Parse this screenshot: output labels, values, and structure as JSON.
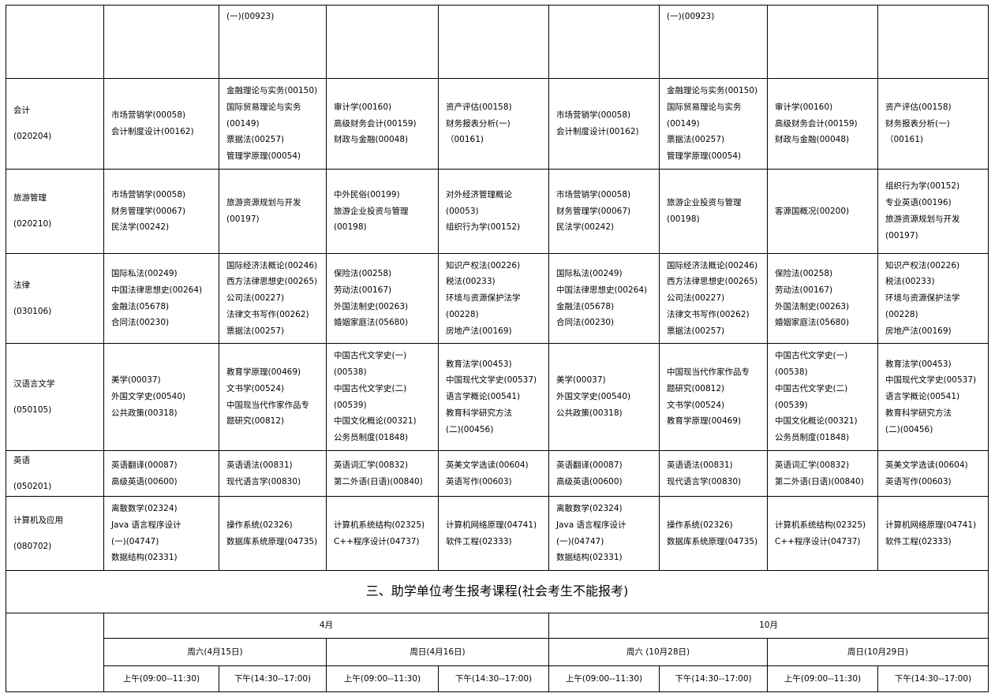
{
  "continuation_row": {
    "cells": [
      [],
      [
        "(一)(00923)"
      ],
      [],
      [],
      [],
      [
        "(一)(00923)"
      ],
      [],
      [],
      []
    ]
  },
  "majors": [
    {
      "name": "会计",
      "code": "(020204)",
      "cells": [
        [
          "市场营销学(00058)",
          "会计制度设计(00162)"
        ],
        [
          "金融理论与实务(00150)",
          "国际贸易理论与实务",
          "(00149)",
          "票据法(00257)",
          "管理学原理(00054)"
        ],
        [
          "审计学(00160)",
          "高级财务会计(00159)",
          "财政与金融(00048)"
        ],
        [
          "资产评估(00158)",
          "财务报表分析(一)",
          "（00161)"
        ],
        [
          "市场营销学(00058)",
          "会计制度设计(00162)"
        ],
        [
          "金融理论与实务(00150)",
          "国际贸易理论与实务",
          "(00149)",
          "票据法(00257)",
          "管理学原理(00054)"
        ],
        [
          "审计学(00160)",
          "高级财务会计(00159)",
          "财政与金融(00048)"
        ],
        [
          "资产评估(00158)",
          "财务报表分析(一)",
          "（00161)"
        ]
      ]
    },
    {
      "name": "旅游管理",
      "code": "(020210)",
      "cells": [
        [
          "市场营销学(00058)",
          "财务管理学(00067)",
          "民法学(00242)"
        ],
        [
          "旅游资源规划与开发",
          "(00197)"
        ],
        [
          "中外民俗(00199)",
          "旅游企业投资与管理",
          "(00198)"
        ],
        [
          "对外经济管理概论",
          "(00053)",
          "组织行为学(00152)"
        ],
        [
          "市场营销学(00058)",
          "财务管理学(00067)",
          "民法学(00242)"
        ],
        [
          "旅游企业投资与管理",
          "(00198)"
        ],
        [
          "客源国概况(00200)"
        ],
        [
          "组织行为学(00152)",
          "专业英语(00196)",
          "旅游资源规划与开发",
          "(00197)"
        ]
      ]
    },
    {
      "name": "法律",
      "code": "(030106)",
      "cells": [
        [
          "国际私法(00249)",
          "中国法律思想史(00264)",
          "金融法(05678)",
          "合同法(00230)"
        ],
        [
          "国际经济法概论(00246)",
          "西方法律思想史(00265)",
          "公司法(00227)",
          "法律文书写作(00262)",
          "票据法(00257)"
        ],
        [
          "保险法(00258)",
          "劳动法(00167)",
          "外国法制史(00263)",
          "婚姻家庭法(05680)"
        ],
        [
          "知识产权法(00226)",
          "税法(00233)",
          "环境与资源保护法学",
          "(00228)",
          "房地产法(00169)"
        ],
        [
          "国际私法(00249)",
          "中国法律思想史(00264)",
          "金融法(05678)",
          "合同法(00230)"
        ],
        [
          "国际经济法概论(00246)",
          "西方法律思想史(00265)",
          "公司法(00227)",
          "法律文书写作(00262)",
          "票据法(00257)"
        ],
        [
          "保险法(00258)",
          "劳动法(00167)",
          "外国法制史(00263)",
          "婚姻家庭法(05680)"
        ],
        [
          "知识产权法(00226)",
          "税法(00233)",
          "环境与资源保护法学",
          "(00228)",
          "房地产法(00169)"
        ]
      ]
    },
    {
      "name": "汉语言文学",
      "code": "(050105)",
      "cells": [
        [
          "美学(00037)",
          "外国文学史(00540)",
          "公共政策(00318)"
        ],
        [
          "教育学原理(00469)",
          "文书学(00524)",
          "中国现当代作家作品专",
          "题研究(00812)"
        ],
        [
          "中国古代文学史(一)",
          "(00538)",
          "中国古代文学史(二)",
          "(00539)",
          "中国文化概论(00321)",
          "公务员制度(01848)"
        ],
        [
          "教育法学(00453)",
          "中国现代文学史(00537)",
          "语言学概论(00541)",
          "教育科学研究方法",
          "(二)(00456)"
        ],
        [
          "美学(00037)",
          "外国文学史(00540)",
          "公共政策(00318)"
        ],
        [
          "中国现当代作家作品专",
          "题研究(00812)",
          "文书学(00524)",
          "教育学原理(00469)"
        ],
        [
          "中国古代文学史(一)",
          "(00538)",
          "中国古代文学史(二)",
          "(00539)",
          "中国文化概论(00321)",
          "公务员制度(01848)"
        ],
        [
          "教育法学(00453)",
          "中国现代文学史(00537)",
          "语言学概论(00541)",
          "教育科学研究方法",
          "(二)(00456)"
        ]
      ]
    },
    {
      "name": "英语",
      "code": "(050201)",
      "cells": [
        [
          "英语翻译(00087)",
          "高级英语(00600)"
        ],
        [
          "英语语法(00831)",
          "现代语言学(00830)"
        ],
        [
          "英语词汇学(00832)",
          "第二外语(日语)(00840)"
        ],
        [
          "英美文学选读(00604)",
          "英语写作(00603)"
        ],
        [
          "英语翻译(00087)",
          "高级英语(00600)"
        ],
        [
          "英语语法(00831)",
          "现代语言学(00830)"
        ],
        [
          "英语词汇学(00832)",
          "第二外语(日语)(00840)"
        ],
        [
          "英美文学选读(00604)",
          "英语写作(00603)"
        ]
      ]
    },
    {
      "name": "计算机及应用",
      "code": "(080702)",
      "cells": [
        [
          "离散数学(02324)",
          "Java 语言程序设计",
          "(一)(04747)",
          "数据结构(02331)"
        ],
        [
          "操作系统(02326)",
          "数据库系统原理(04735)"
        ],
        [
          "计算机系统结构(02325)",
          "C++程序设计(04737)"
        ],
        [
          "计算机网络原理(04741)",
          "软件工程(02333)"
        ],
        [
          "离散数学(02324)",
          "Java 语言程序设计",
          "(一)(04747)",
          "数据结构(02331)"
        ],
        [
          "操作系统(02326)",
          "数据库系统原理(04735)"
        ],
        [
          "计算机系统结构(02325)",
          "C++程序设计(04737)"
        ],
        [
          "计算机网络原理(04741)",
          "软件工程(02333)"
        ]
      ]
    }
  ],
  "section_title": "三、助学单位考生报考课程(社会考生不能报考)",
  "schedule": {
    "months": [
      "4月",
      "10月"
    ],
    "days": [
      "周六(4月15日)",
      "周日(4月16日)",
      "周六 (10月28日)",
      "周日(10月29日)"
    ],
    "sessions": [
      "上午(09:00--11:30)",
      "下午(14:30--17:00)",
      "上午(09:00--11:30)",
      "下午(14:30--17:00)",
      "上午(09:00--11:30)",
      "下午(14:30--17:00)",
      "上午(09:00--11:30)",
      "下午(14:30--17:00)"
    ]
  }
}
